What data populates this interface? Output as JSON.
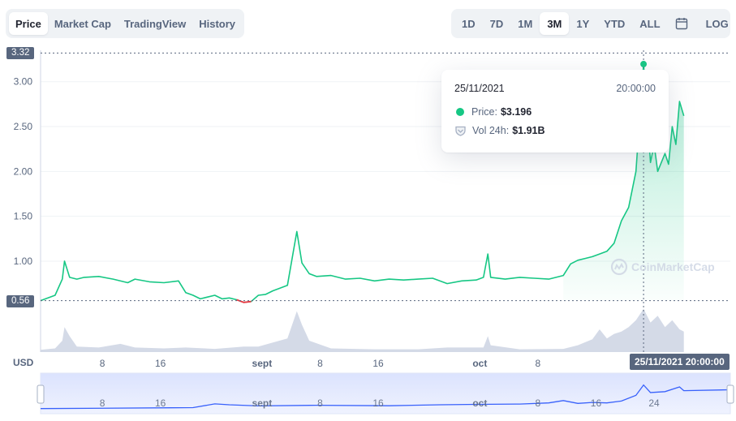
{
  "tabs_left": [
    {
      "label": "Price",
      "active": true
    },
    {
      "label": "Market Cap",
      "active": false
    },
    {
      "label": "TradingView",
      "active": false
    },
    {
      "label": "History",
      "active": false
    }
  ],
  "tabs_right": [
    {
      "label": "1D",
      "active": false
    },
    {
      "label": "7D",
      "active": false
    },
    {
      "label": "1M",
      "active": false
    },
    {
      "label": "3M",
      "active": true
    },
    {
      "label": "1Y",
      "active": false
    },
    {
      "label": "YTD",
      "active": false
    },
    {
      "label": "ALL",
      "active": false
    }
  ],
  "calendar_icon": "calendar-icon",
  "log_label": "LOG",
  "tooltip": {
    "date": "25/11/2021",
    "time": "20:00:00",
    "price_label": "Price:",
    "price_value": "$3.196",
    "volume_label": "Vol 24h:",
    "volume_value": "$1.91B"
  },
  "price_tags": {
    "high": "3.32",
    "low": "0.56"
  },
  "crosshair_date": "25/11/2021 20:00:00",
  "currency_label": "USD",
  "watermark": "CoinMarketCap",
  "colors": {
    "up": "#16c784",
    "down": "#ea3943",
    "volume": "#cfd6e4",
    "navigator": "#3861fb"
  },
  "chart_data": {
    "type": "line",
    "ylim": [
      0.43,
      3.35
    ],
    "yticks": [
      3.0,
      2.5,
      2.0,
      1.5,
      1.0
    ],
    "ytick_labels": [
      "3.00",
      "2.50",
      "2.00",
      "1.50",
      "1.00"
    ],
    "xlim": [
      0,
      95
    ],
    "xticks": [
      {
        "d": 8.5,
        "label": "8"
      },
      {
        "d": 16.5,
        "label": "16"
      },
      {
        "d": 30.5,
        "label": "sept"
      },
      {
        "d": 38.5,
        "label": "8"
      },
      {
        "d": 46.5,
        "label": "16"
      },
      {
        "d": 60.5,
        "label": "oct"
      },
      {
        "d": 68.5,
        "label": "8"
      }
    ],
    "navigator_xticks": [
      {
        "d": 8.5,
        "label": "8"
      },
      {
        "d": 16.5,
        "label": "16"
      },
      {
        "d": 30.5,
        "label": "sept"
      },
      {
        "d": 38.5,
        "label": "8"
      },
      {
        "d": 46.5,
        "label": "16"
      },
      {
        "d": 60.5,
        "label": "oct"
      },
      {
        "d": 68.5,
        "label": "8"
      },
      {
        "d": 76.5,
        "label": "16"
      },
      {
        "d": 84.5,
        "label": "24"
      }
    ],
    "price_series": {
      "name": "Price",
      "points": [
        [
          0,
          0.56
        ],
        [
          2,
          0.62
        ],
        [
          3,
          0.8
        ],
        [
          3.3,
          1.0
        ],
        [
          4,
          0.82
        ],
        [
          5,
          0.8
        ],
        [
          6,
          0.82
        ],
        [
          8,
          0.83
        ],
        [
          10,
          0.8
        ],
        [
          12,
          0.76
        ],
        [
          13,
          0.8
        ],
        [
          15,
          0.77
        ],
        [
          17,
          0.76
        ],
        [
          19,
          0.78
        ],
        [
          20,
          0.65
        ],
        [
          21,
          0.62
        ],
        [
          22,
          0.58
        ],
        [
          24,
          0.62
        ],
        [
          25,
          0.58
        ],
        [
          26,
          0.59
        ],
        [
          27,
          0.57
        ],
        [
          28,
          0.54
        ],
        [
          29,
          0.55
        ],
        [
          30,
          0.62
        ],
        [
          31,
          0.63
        ],
        [
          32,
          0.67
        ],
        [
          33,
          0.7
        ],
        [
          34,
          0.73
        ],
        [
          35.3,
          1.33
        ],
        [
          36,
          0.98
        ],
        [
          37,
          0.86
        ],
        [
          38,
          0.83
        ],
        [
          40,
          0.84
        ],
        [
          42,
          0.8
        ],
        [
          44,
          0.81
        ],
        [
          46,
          0.78
        ],
        [
          48,
          0.8
        ],
        [
          50,
          0.79
        ],
        [
          52,
          0.8
        ],
        [
          54,
          0.81
        ],
        [
          56,
          0.75
        ],
        [
          58,
          0.78
        ],
        [
          60,
          0.79
        ],
        [
          61,
          0.82
        ],
        [
          61.6,
          1.08
        ],
        [
          62,
          0.82
        ],
        [
          64,
          0.8
        ],
        [
          66,
          0.82
        ],
        [
          68,
          0.81
        ],
        [
          70,
          0.8
        ],
        [
          72,
          0.84
        ],
        [
          73,
          0.97
        ],
        [
          74,
          1.01
        ],
        [
          75,
          1.03
        ],
        [
          76,
          1.05
        ],
        [
          77,
          1.08
        ],
        [
          78,
          1.11
        ],
        [
          79,
          1.2
        ],
        [
          80,
          1.45
        ],
        [
          81,
          1.6
        ],
        [
          82,
          2.0
        ],
        [
          82.7,
          2.8
        ],
        [
          83.05,
          3.196
        ],
        [
          83.5,
          2.7
        ],
        [
          84,
          2.1
        ],
        [
          84.5,
          2.3
        ],
        [
          85,
          2.0
        ],
        [
          86,
          2.2
        ],
        [
          86.5,
          2.08
        ],
        [
          87,
          2.5
        ],
        [
          87.5,
          2.3
        ],
        [
          88,
          2.78
        ],
        [
          88.6,
          2.62
        ]
      ]
    },
    "down_segment": {
      "d_start": 26.8,
      "d_end": 29.2
    },
    "volume_series": {
      "name": "Vol 24h",
      "ymax": 1.0,
      "points": [
        [
          0,
          0.05
        ],
        [
          2,
          0.08
        ],
        [
          3,
          0.25
        ],
        [
          3.3,
          0.55
        ],
        [
          4,
          0.35
        ],
        [
          5,
          0.12
        ],
        [
          8,
          0.1
        ],
        [
          11,
          0.18
        ],
        [
          13,
          0.1
        ],
        [
          17,
          0.08
        ],
        [
          20,
          0.1
        ],
        [
          24,
          0.07
        ],
        [
          28,
          0.12
        ],
        [
          30,
          0.12
        ],
        [
          34,
          0.3
        ],
        [
          35.3,
          0.9
        ],
        [
          36,
          0.6
        ],
        [
          37,
          0.25
        ],
        [
          40,
          0.08
        ],
        [
          46,
          0.06
        ],
        [
          52,
          0.06
        ],
        [
          56,
          0.1
        ],
        [
          61,
          0.1
        ],
        [
          61.6,
          0.35
        ],
        [
          62,
          0.15
        ],
        [
          66,
          0.06
        ],
        [
          72,
          0.07
        ],
        [
          74,
          0.15
        ],
        [
          76,
          0.28
        ],
        [
          77,
          0.5
        ],
        [
          78,
          0.3
        ],
        [
          79,
          0.4
        ],
        [
          80,
          0.45
        ],
        [
          81,
          0.55
        ],
        [
          82,
          0.7
        ],
        [
          83.05,
          0.95
        ],
        [
          84,
          0.65
        ],
        [
          85,
          0.8
        ],
        [
          86,
          0.55
        ],
        [
          87,
          0.7
        ],
        [
          88,
          0.5
        ],
        [
          88.6,
          0.45
        ]
      ]
    }
  }
}
